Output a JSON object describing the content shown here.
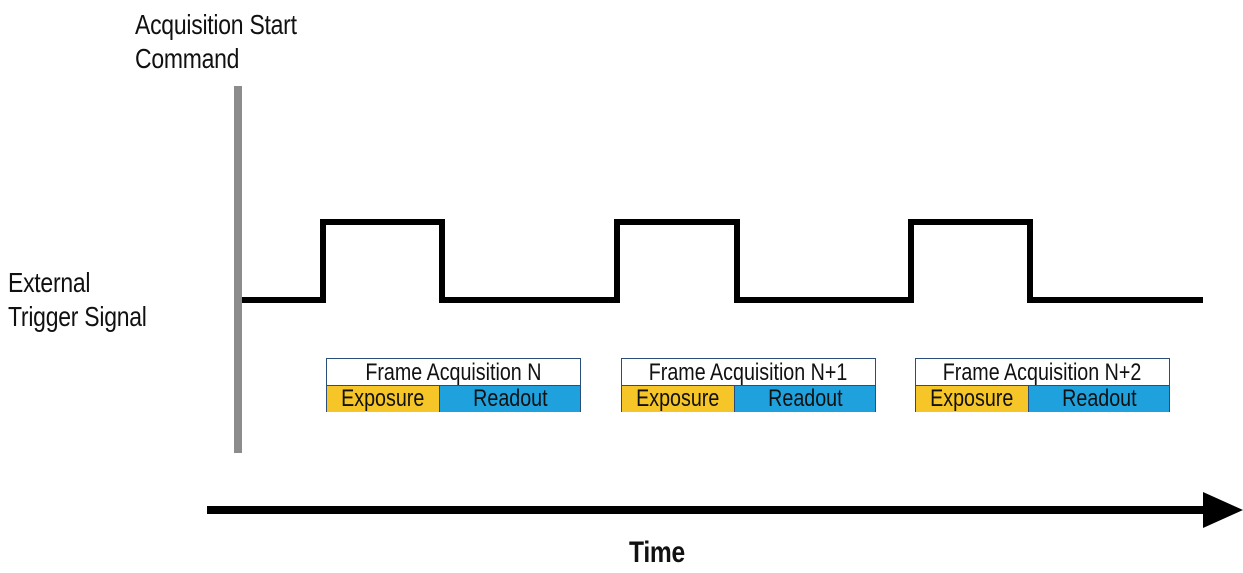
{
  "labels": {
    "acquisition_start": "Acquisition Start",
    "acquisition_start_line2": "Command",
    "trigger_line1": "External",
    "trigger_line2": "Trigger Signal",
    "time": "Time"
  },
  "frames": [
    {
      "title": "Frame Acquisition N",
      "exposure": "Exposure",
      "readout": "Readout"
    },
    {
      "title": "Frame Acquisition N+1",
      "exposure": "Exposure",
      "readout": "Readout"
    },
    {
      "title": "Frame Acquisition N+2",
      "exposure": "Exposure",
      "readout": "Readout"
    }
  ],
  "colors": {
    "exposure": "#f6c528",
    "readout": "#1ea1dd",
    "start_bar": "#8c8c8c",
    "signal": "#000000"
  }
}
